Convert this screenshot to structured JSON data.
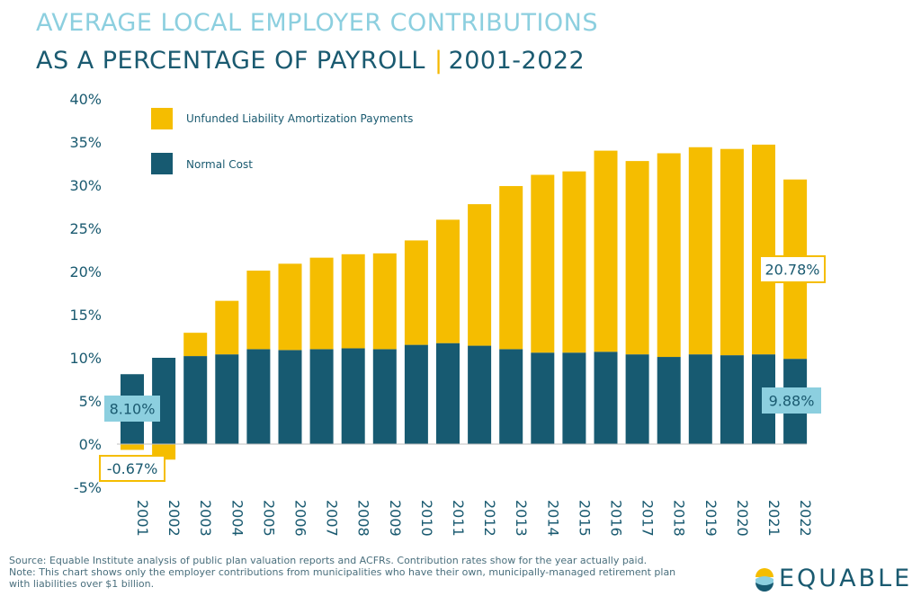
{
  "title": {
    "line1": "AVERAGE LOCAL EMPLOYER CONTRIBUTIONS",
    "line2_main": "AS A PERCENTAGE OF PAYROLL",
    "line2_sep": "|",
    "line2_years": "2001-2022"
  },
  "chart_data": {
    "type": "bar",
    "stacked": true,
    "categories": [
      "2001",
      "2002",
      "2003",
      "2004",
      "2005",
      "2006",
      "2007",
      "2008",
      "2009",
      "2010",
      "2011",
      "2012",
      "2013",
      "2014",
      "2015",
      "2016",
      "2017",
      "2018",
      "2019",
      "2020",
      "2021",
      "2022"
    ],
    "series": [
      {
        "name": "Normal Cost",
        "color": "#175a71",
        "values": [
          8.1,
          10.0,
          10.2,
          10.4,
          11.0,
          10.9,
          11.0,
          11.1,
          11.0,
          11.5,
          11.7,
          11.4,
          11.0,
          10.6,
          10.6,
          10.7,
          10.4,
          10.1,
          10.4,
          10.3,
          10.4,
          9.88
        ]
      },
      {
        "name": "Unfunded Liability Amortization Payments",
        "color": "#f5bd00",
        "values": [
          -0.67,
          -1.8,
          2.7,
          6.2,
          9.1,
          10.0,
          10.6,
          10.9,
          11.1,
          12.1,
          14.3,
          16.4,
          18.9,
          20.6,
          21.0,
          23.3,
          22.4,
          23.6,
          24.0,
          23.9,
          24.3,
          20.78
        ]
      }
    ],
    "ylim": [
      -5,
      40
    ],
    "yticks": [
      "40%",
      "35%",
      "30%",
      "25%",
      "20%",
      "15%",
      "10%",
      "5%",
      "0%",
      "-5%"
    ],
    "ytick_values": [
      40,
      35,
      30,
      25,
      20,
      15,
      10,
      5,
      0,
      -5
    ],
    "legend_position": "top-left",
    "grid": false,
    "annotations": [
      {
        "text": "8.10%",
        "style": "blue"
      },
      {
        "text": "-0.67%",
        "style": "yellow"
      },
      {
        "text": "20.78%",
        "style": "yellow"
      },
      {
        "text": "9.88%",
        "style": "blue"
      }
    ]
  },
  "footer": {
    "source": "Source: Equable Institute analysis of public plan valuation reports and ACFRs. Contribution rates show for the year actually paid.",
    "note1": "Note: This chart shows only the employer contributions from municipalities who have their own, municipally-managed retirement plan",
    "note2": "with liabilities over $1 billion.",
    "logo_text": "EQUABLE"
  },
  "colors": {
    "navy": "#175a71",
    "gold": "#f5bd00",
    "light_blue_label": "#8ccfdf",
    "title_light": "#8ccfdf",
    "title_dark": "#1a5a70"
  }
}
